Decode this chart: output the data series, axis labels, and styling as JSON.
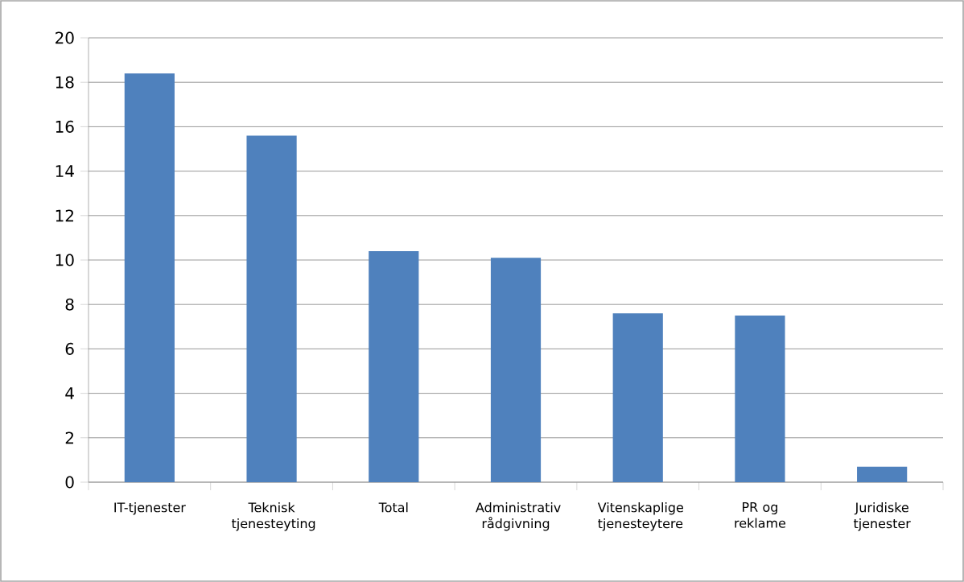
{
  "chart_data": {
    "type": "bar",
    "categories": [
      "IT-tjenester",
      "Teknisk tjenesteyting",
      "Total",
      "Administrativ rådgivning",
      "Vitenskaplige tjenesteytere",
      "PR og reklame",
      "Juridiske tjenester"
    ],
    "values": [
      18.4,
      15.6,
      10.4,
      10.1,
      7.6,
      7.5,
      0.7
    ],
    "color": "#4f81bd",
    "ylim": [
      0,
      20
    ],
    "yticks": [
      0,
      2,
      4,
      6,
      8,
      10,
      12,
      14,
      16,
      18,
      20
    ],
    "grid": "y"
  }
}
